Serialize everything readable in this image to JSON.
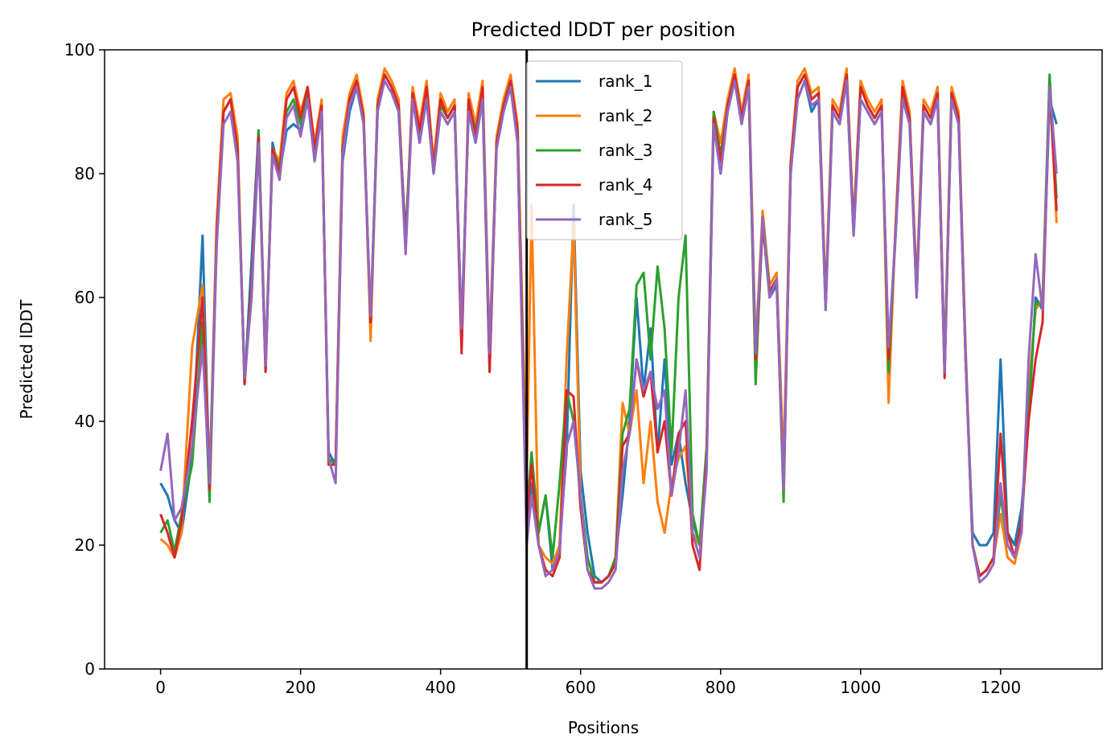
{
  "chart_data": {
    "type": "line",
    "title": "Predicted lDDT per position",
    "xlabel": "Positions",
    "ylabel": "Predicted lDDT",
    "xlim": [
      -80,
      1345
    ],
    "ylim": [
      0,
      100
    ],
    "x_ticks": [
      0,
      200,
      400,
      600,
      800,
      1000,
      1200
    ],
    "y_ticks": [
      0,
      20,
      40,
      60,
      80,
      100
    ],
    "grid": false,
    "legend_position": "upper-center",
    "vline_x": 523,
    "vline_color": "#000000",
    "series": [
      {
        "name": "rank_1",
        "color": "#1f77b4",
        "x": [
          0,
          10,
          20,
          30,
          45,
          60,
          70,
          80,
          90,
          100,
          110,
          120,
          130,
          140,
          150,
          160,
          170,
          180,
          190,
          200,
          210,
          220,
          230,
          240,
          250,
          260,
          270,
          280,
          290,
          300,
          310,
          320,
          330,
          340,
          350,
          360,
          370,
          380,
          390,
          400,
          410,
          420,
          430,
          440,
          450,
          460,
          470,
          480,
          490,
          500,
          510,
          523,
          530,
          540,
          550,
          560,
          570,
          580,
          590,
          600,
          610,
          620,
          630,
          640,
          650,
          660,
          670,
          680,
          690,
          700,
          710,
          720,
          730,
          740,
          750,
          760,
          770,
          780,
          790,
          800,
          810,
          820,
          830,
          840,
          850,
          860,
          870,
          880,
          890,
          900,
          910,
          920,
          930,
          940,
          950,
          960,
          970,
          980,
          990,
          1000,
          1010,
          1020,
          1030,
          1040,
          1050,
          1060,
          1070,
          1080,
          1090,
          1100,
          1110,
          1120,
          1130,
          1140,
          1150,
          1160,
          1170,
          1180,
          1190,
          1200,
          1210,
          1220,
          1230,
          1240,
          1250,
          1260,
          1270,
          1280
        ],
        "y": [
          30,
          28,
          24,
          22,
          34,
          70,
          30,
          70,
          90,
          92,
          85,
          46,
          66,
          87,
          48,
          85,
          80,
          87,
          88,
          87,
          93,
          82,
          90,
          35,
          33,
          82,
          90,
          94,
          88,
          55,
          90,
          96,
          94,
          90,
          70,
          92,
          85,
          92,
          80,
          90,
          88,
          90,
          55,
          90,
          85,
          92,
          48,
          85,
          90,
          94,
          85,
          22,
          30,
          22,
          28,
          16,
          20,
          35,
          75,
          32,
          22,
          15,
          14,
          15,
          18,
          28,
          40,
          60,
          45,
          55,
          35,
          50,
          33,
          38,
          30,
          24,
          20,
          35,
          88,
          80,
          90,
          95,
          88,
          94,
          48,
          72,
          60,
          62,
          30,
          80,
          92,
          95,
          90,
          92,
          58,
          90,
          88,
          95,
          70,
          92,
          90,
          88,
          90,
          50,
          70,
          92,
          88,
          60,
          90,
          88,
          92,
          48,
          92,
          88,
          50,
          22,
          20,
          20,
          22,
          50,
          22,
          20,
          26,
          40,
          60,
          58,
          92,
          88
        ]
      },
      {
        "name": "rank_2",
        "color": "#ff7f0e",
        "x": [
          0,
          10,
          20,
          30,
          45,
          60,
          70,
          80,
          90,
          100,
          110,
          120,
          130,
          140,
          150,
          160,
          170,
          180,
          190,
          200,
          210,
          220,
          230,
          240,
          250,
          260,
          270,
          280,
          290,
          300,
          310,
          320,
          330,
          340,
          350,
          360,
          370,
          380,
          390,
          400,
          410,
          420,
          430,
          440,
          450,
          460,
          470,
          480,
          490,
          500,
          510,
          523,
          530,
          540,
          550,
          560,
          570,
          580,
          590,
          600,
          610,
          620,
          630,
          640,
          650,
          660,
          670,
          680,
          690,
          700,
          710,
          720,
          730,
          740,
          750,
          760,
          770,
          780,
          790,
          800,
          810,
          820,
          830,
          840,
          850,
          860,
          870,
          880,
          890,
          900,
          910,
          920,
          930,
          940,
          950,
          960,
          970,
          980,
          990,
          1000,
          1010,
          1020,
          1030,
          1040,
          1050,
          1060,
          1070,
          1080,
          1090,
          1100,
          1110,
          1120,
          1130,
          1140,
          1150,
          1160,
          1170,
          1180,
          1190,
          1200,
          1210,
          1220,
          1230,
          1240,
          1250,
          1260,
          1270,
          1280
        ],
        "y": [
          21,
          20,
          18,
          22,
          52,
          62,
          30,
          72,
          92,
          93,
          86,
          46,
          62,
          86,
          50,
          84,
          82,
          93,
          95,
          90,
          94,
          85,
          92,
          33,
          33,
          86,
          93,
          96,
          90,
          53,
          92,
          97,
          95,
          92,
          68,
          94,
          88,
          95,
          82,
          93,
          90,
          92,
          52,
          93,
          88,
          95,
          52,
          86,
          92,
          96,
          88,
          30,
          75,
          20,
          18,
          17,
          20,
          50,
          72,
          28,
          18,
          14,
          14,
          15,
          18,
          43,
          38,
          45,
          30,
          40,
          27,
          22,
          30,
          34,
          36,
          22,
          20,
          35,
          90,
          85,
          92,
          97,
          90,
          96,
          52,
          74,
          62,
          64,
          33,
          82,
          95,
          97,
          93,
          94,
          60,
          92,
          90,
          97,
          72,
          95,
          92,
          90,
          92,
          43,
          72,
          95,
          90,
          62,
          92,
          90,
          94,
          50,
          94,
          90,
          52,
          20,
          15,
          16,
          18,
          25,
          18,
          17,
          22,
          45,
          58,
          60,
          95,
          72
        ]
      },
      {
        "name": "rank_3",
        "color": "#2ca02c",
        "x": [
          0,
          10,
          20,
          30,
          45,
          60,
          70,
          80,
          90,
          100,
          110,
          120,
          130,
          140,
          150,
          160,
          170,
          180,
          190,
          200,
          210,
          220,
          230,
          240,
          250,
          260,
          270,
          280,
          290,
          300,
          310,
          320,
          330,
          340,
          350,
          360,
          370,
          380,
          390,
          400,
          410,
          420,
          430,
          440,
          450,
          460,
          470,
          480,
          490,
          500,
          510,
          523,
          530,
          540,
          550,
          560,
          570,
          580,
          590,
          600,
          610,
          620,
          630,
          640,
          650,
          660,
          670,
          680,
          690,
          700,
          710,
          720,
          730,
          740,
          750,
          760,
          770,
          780,
          790,
          800,
          810,
          820,
          830,
          840,
          850,
          860,
          870,
          880,
          890,
          900,
          910,
          920,
          930,
          940,
          950,
          960,
          970,
          980,
          990,
          1000,
          1010,
          1020,
          1030,
          1040,
          1050,
          1060,
          1070,
          1080,
          1090,
          1100,
          1110,
          1120,
          1130,
          1140,
          1150,
          1160,
          1170,
          1180,
          1190,
          1200,
          1210,
          1220,
          1230,
          1240,
          1250,
          1260,
          1270,
          1280
        ],
        "y": [
          22,
          24,
          19,
          25,
          33,
          56,
          27,
          68,
          90,
          92,
          84,
          47,
          60,
          87,
          49,
          84,
          81,
          90,
          92,
          88,
          93,
          83,
          91,
          34,
          33,
          84,
          92,
          95,
          89,
          56,
          91,
          96,
          94,
          91,
          69,
          93,
          86,
          93,
          81,
          91,
          89,
          91,
          54,
          91,
          87,
          93,
          50,
          85,
          91,
          95,
          86,
          25,
          35,
          22,
          28,
          18,
          30,
          45,
          40,
          28,
          18,
          14,
          14,
          15,
          18,
          38,
          42,
          62,
          64,
          50,
          65,
          55,
          35,
          60,
          70,
          25,
          20,
          36,
          90,
          83,
          91,
          96,
          89,
          95,
          46,
          73,
          61,
          63,
          27,
          81,
          94,
          96,
          92,
          93,
          59,
          91,
          89,
          96,
          71,
          94,
          91,
          89,
          91,
          48,
          71,
          93,
          89,
          61,
          91,
          89,
          93,
          49,
          93,
          89,
          51,
          20,
          15,
          16,
          18,
          28,
          20,
          18,
          24,
          42,
          59,
          59,
          96,
          76
        ]
      },
      {
        "name": "rank_4",
        "color": "#d62728",
        "x": [
          0,
          10,
          20,
          30,
          45,
          60,
          70,
          80,
          90,
          100,
          110,
          120,
          130,
          140,
          150,
          160,
          170,
          180,
          190,
          200,
          210,
          220,
          230,
          240,
          250,
          260,
          270,
          280,
          290,
          300,
          310,
          320,
          330,
          340,
          350,
          360,
          370,
          380,
          390,
          400,
          410,
          420,
          430,
          440,
          450,
          460,
          470,
          480,
          490,
          500,
          510,
          523,
          530,
          540,
          550,
          560,
          570,
          580,
          590,
          600,
          610,
          620,
          630,
          640,
          650,
          660,
          670,
          680,
          690,
          700,
          710,
          720,
          730,
          740,
          750,
          760,
          770,
          780,
          790,
          800,
          810,
          820,
          830,
          840,
          850,
          860,
          870,
          880,
          890,
          900,
          910,
          920,
          930,
          940,
          950,
          960,
          970,
          980,
          990,
          1000,
          1010,
          1020,
          1030,
          1040,
          1050,
          1060,
          1070,
          1080,
          1090,
          1100,
          1110,
          1120,
          1130,
          1140,
          1150,
          1160,
          1170,
          1180,
          1190,
          1200,
          1210,
          1220,
          1230,
          1240,
          1250,
          1260,
          1270,
          1280
        ],
        "y": [
          25,
          22,
          18,
          24,
          40,
          60,
          29,
          70,
          90,
          92,
          84,
          46,
          62,
          86,
          48,
          84,
          80,
          92,
          94,
          89,
          94,
          84,
          91,
          33,
          33,
          84,
          92,
          95,
          89,
          56,
          91,
          96,
          94,
          91,
          68,
          93,
          87,
          94,
          81,
          92,
          89,
          91,
          51,
          92,
          86,
          94,
          48,
          85,
          91,
          95,
          87,
          24,
          33,
          20,
          16,
          15,
          18,
          45,
          44,
          26,
          16,
          14,
          14,
          15,
          17,
          36,
          38,
          50,
          44,
          48,
          35,
          40,
          28,
          38,
          40,
          20,
          16,
          34,
          89,
          82,
          91,
          96,
          89,
          95,
          50,
          72,
          61,
          63,
          29,
          81,
          94,
          96,
          92,
          93,
          59,
          91,
          89,
          96,
          71,
          94,
          91,
          89,
          91,
          50,
          71,
          94,
          89,
          61,
          91,
          89,
          93,
          47,
          93,
          89,
          50,
          20,
          15,
          16,
          18,
          38,
          22,
          18,
          24,
          40,
          50,
          56,
          94,
          74
        ]
      },
      {
        "name": "rank_5",
        "color": "#9467bd",
        "x": [
          0,
          10,
          20,
          30,
          45,
          60,
          70,
          80,
          90,
          100,
          110,
          120,
          130,
          140,
          150,
          160,
          170,
          180,
          190,
          200,
          210,
          220,
          230,
          240,
          250,
          260,
          270,
          280,
          290,
          300,
          310,
          320,
          330,
          340,
          350,
          360,
          370,
          380,
          390,
          400,
          410,
          420,
          430,
          440,
          450,
          460,
          470,
          480,
          490,
          500,
          510,
          523,
          530,
          540,
          550,
          560,
          570,
          580,
          590,
          600,
          610,
          620,
          630,
          640,
          650,
          660,
          670,
          680,
          690,
          700,
          710,
          720,
          730,
          740,
          750,
          760,
          770,
          780,
          790,
          800,
          810,
          820,
          830,
          840,
          850,
          860,
          870,
          880,
          890,
          900,
          910,
          920,
          930,
          940,
          950,
          960,
          970,
          980,
          990,
          1000,
          1010,
          1020,
          1030,
          1040,
          1050,
          1060,
          1070,
          1080,
          1090,
          1100,
          1110,
          1120,
          1130,
          1140,
          1150,
          1160,
          1170,
          1180,
          1190,
          1200,
          1210,
          1220,
          1230,
          1240,
          1250,
          1260,
          1270,
          1280
        ],
        "y": [
          32,
          38,
          24,
          26,
          36,
          52,
          30,
          68,
          88,
          90,
          82,
          47,
          60,
          85,
          49,
          83,
          79,
          89,
          91,
          86,
          92,
          82,
          90,
          34,
          30,
          83,
          91,
          94,
          88,
          57,
          90,
          95,
          93,
          90,
          67,
          92,
          85,
          92,
          80,
          90,
          88,
          90,
          55,
          90,
          85,
          92,
          51,
          84,
          90,
          94,
          85,
          20,
          28,
          20,
          15,
          16,
          19,
          36,
          40,
          28,
          16,
          13,
          13,
          14,
          16,
          32,
          38,
          50,
          45,
          48,
          42,
          45,
          28,
          35,
          45,
          22,
          18,
          32,
          88,
          80,
          90,
          95,
          88,
          94,
          51,
          73,
          60,
          63,
          29,
          80,
          92,
          95,
          91,
          92,
          58,
          90,
          88,
          95,
          70,
          92,
          90,
          88,
          90,
          52,
          70,
          92,
          88,
          60,
          90,
          88,
          92,
          48,
          92,
          88,
          50,
          20,
          14,
          15,
          17,
          30,
          20,
          18,
          22,
          50,
          67,
          58,
          94,
          80
        ]
      }
    ]
  }
}
